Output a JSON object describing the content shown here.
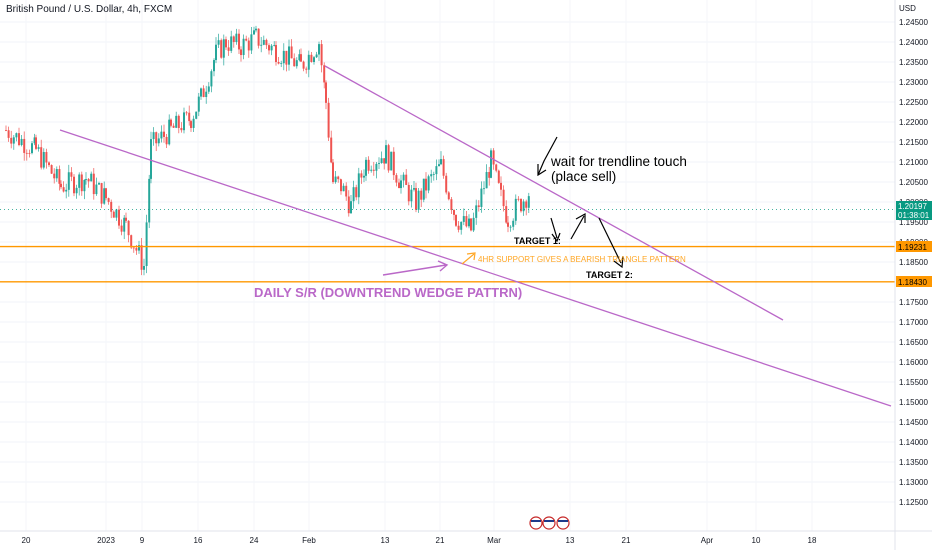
{
  "header": {
    "title": "British Pound / U.S. Dollar, 4h, FXCM"
  },
  "price_axis": {
    "currency": "USD",
    "ticks": [
      "1.24500",
      "1.24000",
      "1.23500",
      "1.23000",
      "1.22500",
      "1.22000",
      "1.21500",
      "1.21000",
      "1.20500",
      "1.20000",
      "1.19500",
      "1.19000",
      "1.18500",
      "1.18000",
      "1.17500",
      "1.17000",
      "1.16500",
      "1.16000",
      "1.15500",
      "1.15000",
      "1.14500",
      "1.14000",
      "1.13500",
      "1.13000",
      "1.12500"
    ],
    "current_price": "1.20197",
    "countdown": "01:38:01",
    "level_1": "1.19231",
    "level_2": "1.18430"
  },
  "time_axis": {
    "labels": [
      "20",
      "2023",
      "9",
      "16",
      "24",
      "Feb",
      "13",
      "21",
      "Mar",
      "13",
      "21",
      "Apr",
      "10",
      "18"
    ]
  },
  "annotations": {
    "wait_line1": "wait for trendline touch",
    "wait_line2": "(place sell)",
    "target1": "TARGET 1:",
    "target2": "TARGET 2:",
    "support_note": "4HR SUPPORT GIVES A BEARISH TRIANGLE PATTERN",
    "daily_sr": "DAILY S/R (DOWNTREND WEDGE PATTRN)"
  },
  "colors": {
    "up": "#26a69a",
    "down": "#ef5350",
    "trendline": "#ba68c8",
    "level": "#ff9800",
    "current_price": "#089981"
  },
  "chart_data": {
    "type": "candlestick",
    "title": "British Pound / U.S. Dollar, 4h, FXCM",
    "ylabel": "USD",
    "ylim": [
      1.125,
      1.248
    ],
    "x": [
      "Dec 20",
      "Jan 3 (2023)",
      "Jan 9",
      "Jan 16",
      "Jan 24",
      "Feb 1",
      "Feb 13",
      "Feb 21",
      "Mar 1",
      "Mar 13",
      "Mar 21",
      "Apr 1",
      "Apr 10",
      "Apr 18"
    ],
    "close_path": [
      [
        "Dec 20",
        1.218
      ],
      [
        "Dec 23",
        1.213
      ],
      [
        "Dec 27",
        1.204
      ],
      [
        "Dec 30",
        1.206
      ],
      [
        "Jan 3",
        1.201
      ],
      [
        "Jan 5",
        1.194
      ],
      [
        "Jan 6",
        1.184
      ],
      [
        "Jan 9",
        1.214
      ],
      [
        "Jan 11",
        1.218
      ],
      [
        "Jan 13",
        1.221
      ],
      [
        "Jan 16",
        1.226
      ],
      [
        "Jan 18",
        1.237
      ],
      [
        "Jan 20",
        1.24
      ],
      [
        "Jan 23",
        1.239
      ],
      [
        "Jan 24",
        1.241
      ],
      [
        "Jan 26",
        1.238
      ],
      [
        "Jan 30",
        1.234
      ],
      [
        "Feb 1",
        1.24
      ],
      [
        "Feb 2",
        1.225
      ],
      [
        "Feb 3",
        1.205
      ],
      [
        "Feb 6",
        1.204
      ],
      [
        "Feb 7",
        1.199
      ],
      [
        "Feb 9",
        1.21
      ],
      [
        "Feb 13",
        1.212
      ],
      [
        "Feb 15",
        1.205
      ],
      [
        "Feb 17",
        1.2
      ],
      [
        "Feb 20",
        1.204
      ],
      [
        "Feb 21",
        1.209
      ],
      [
        "Feb 23",
        1.196
      ],
      [
        "Feb 27",
        1.193
      ],
      [
        "Mar 1",
        1.21
      ],
      [
        "Mar 2",
        1.201
      ],
      [
        "Mar 3",
        1.196
      ],
      [
        "Mar 6",
        1.203
      ]
    ],
    "horizontal_levels": [
      1.19231,
      1.1843
    ],
    "current_price": 1.20197,
    "trendlines": [
      {
        "from": [
          "Feb 1",
          1.238
        ],
        "to": [
          "Apr 15",
          1.176
        ]
      },
      {
        "from": [
          "Dec 24",
          1.222
        ],
        "to": [
          "Apr 22",
          1.155
        ]
      }
    ]
  }
}
